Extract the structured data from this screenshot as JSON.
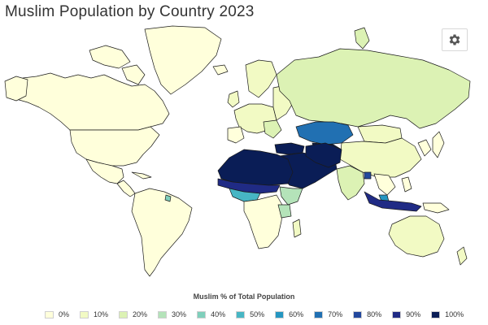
{
  "page": {
    "title": "Muslim Population by Country 2023"
  },
  "toolbar": {
    "settings_icon": "gear-icon"
  },
  "legend": {
    "title": "Muslim % of Total Population",
    "items": [
      {
        "label": "0%",
        "color": "#ffffdb"
      },
      {
        "label": "10%",
        "color": "#f2fac4"
      },
      {
        "label": "20%",
        "color": "#dcf2b4"
      },
      {
        "label": "30%",
        "color": "#b4e3b9"
      },
      {
        "label": "40%",
        "color": "#7fcfbb"
      },
      {
        "label": "50%",
        "color": "#47b6c4"
      },
      {
        "label": "60%",
        "color": "#2596c1"
      },
      {
        "label": "70%",
        "color": "#2170b2"
      },
      {
        "label": "80%",
        "color": "#23489d"
      },
      {
        "label": "90%",
        "color": "#202b85"
      },
      {
        "label": "100%",
        "color": "#0a1d56"
      }
    ]
  }
}
